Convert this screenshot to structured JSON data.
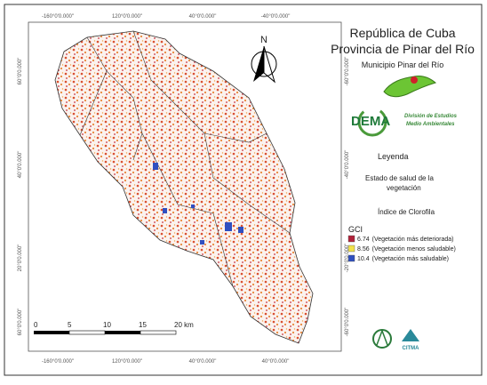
{
  "coords": {
    "top": [
      "-160°0'0.000\"",
      "120°0'0.000\"",
      "40°0'0.000\"",
      "-40°0'0.000\""
    ],
    "bottom": [
      "-160°0'0.000\"",
      "120°0'0.000\"",
      "40°0'0.000\"",
      "40°0'0.000\""
    ],
    "left": [
      "60°0'0.000\"",
      "40°0'0.000\"",
      "20°0'0.000\"",
      "60°0'0.000\""
    ],
    "right": [
      "-60°0'0.000\"",
      "-40°0'0.000\"",
      "-20°0'0.000\"",
      "-60°0'0.000\""
    ]
  },
  "north": "N",
  "scale_bar": [
    "0",
    "5",
    "10",
    "15",
    "20 km"
  ],
  "header": {
    "title": "República de Cuba",
    "subtitle": "Provincia de Pinar del Río",
    "municipality": "Municipio Pinar del Río"
  },
  "logo": {
    "name": "DEMA",
    "caption": [
      "División de Estudios",
      "Medio Ambientales"
    ]
  },
  "legend": {
    "title": "Leyenda",
    "subject": [
      "Estado de salud de la",
      "vegetación"
    ],
    "index": "Índice de Clorofila",
    "variable": "GCI",
    "items": [
      {
        "value": 6.74,
        "text": "(Vegetación más deteriorada)",
        "color": "#b0223a"
      },
      {
        "value": 8.56,
        "text": "(Vegetación menos saludable)",
        "color": "#f2e24a"
      },
      {
        "value": 10.4,
        "text": "(Vegetación más saludable)",
        "color": "#2f4fc0"
      }
    ]
  },
  "footer": {
    "org": "CITMA"
  }
}
